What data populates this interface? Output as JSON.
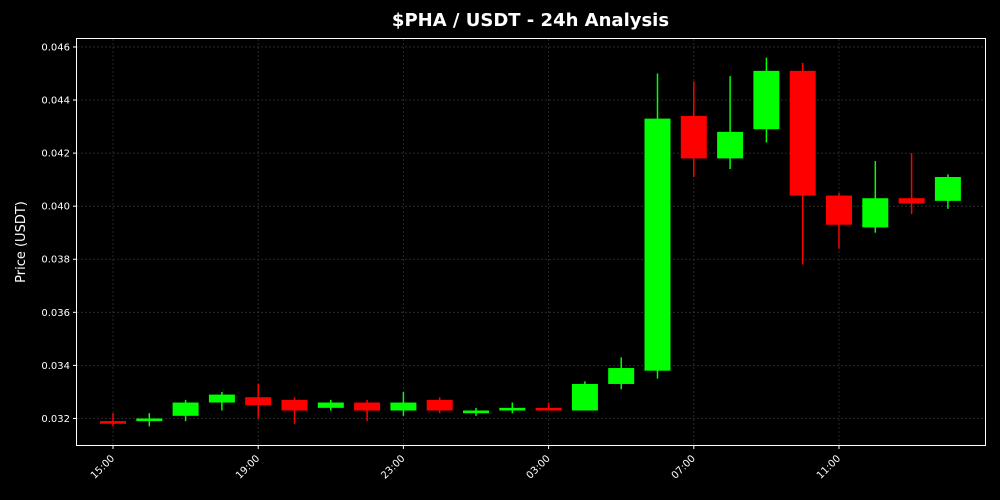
{
  "chart_data": {
    "type": "candlestick",
    "title": "$PHA / USDT - 24h Analysis",
    "xlabel": "",
    "ylabel": "Price (USDT)",
    "ylim": [
      0.031,
      0.0463
    ],
    "xlim": [
      "14:00",
      "13:00"
    ],
    "y_ticks": [
      "0.032",
      "0.034",
      "0.036",
      "0.038",
      "0.040",
      "0.042",
      "0.044",
      "0.046"
    ],
    "x_ticks": [
      "15:00",
      "19:00",
      "23:00",
      "03:00",
      "07:00",
      "11:00"
    ],
    "grid": true,
    "colors": {
      "up": "#00ff00",
      "down": "#ff0000",
      "background": "#000000",
      "text": "#ffffff",
      "grid": "#333333"
    },
    "candles": [
      {
        "time": "15:00",
        "open": 0.0319,
        "high": 0.0322,
        "low": 0.0317,
        "close": 0.0318
      },
      {
        "time": "16:00",
        "open": 0.0319,
        "high": 0.0322,
        "low": 0.0317,
        "close": 0.032
      },
      {
        "time": "17:00",
        "open": 0.0321,
        "high": 0.0327,
        "low": 0.0319,
        "close": 0.0326
      },
      {
        "time": "18:00",
        "open": 0.0326,
        "high": 0.033,
        "low": 0.0323,
        "close": 0.0329
      },
      {
        "time": "19:00",
        "open": 0.0328,
        "high": 0.0333,
        "low": 0.032,
        "close": 0.0325
      },
      {
        "time": "20:00",
        "open": 0.0327,
        "high": 0.0328,
        "low": 0.0318,
        "close": 0.0323
      },
      {
        "time": "21:00",
        "open": 0.0324,
        "high": 0.0327,
        "low": 0.0323,
        "close": 0.0326
      },
      {
        "time": "22:00",
        "open": 0.0326,
        "high": 0.0327,
        "low": 0.0319,
        "close": 0.0323
      },
      {
        "time": "23:00",
        "open": 0.0323,
        "high": 0.033,
        "low": 0.0321,
        "close": 0.0326
      },
      {
        "time": "00:00",
        "open": 0.0327,
        "high": 0.0328,
        "low": 0.0322,
        "close": 0.0323
      },
      {
        "time": "01:00",
        "open": 0.0322,
        "high": 0.0324,
        "low": 0.0321,
        "close": 0.0323
      },
      {
        "time": "02:00",
        "open": 0.0323,
        "high": 0.0326,
        "low": 0.0322,
        "close": 0.0324
      },
      {
        "time": "03:00",
        "open": 0.0324,
        "high": 0.0326,
        "low": 0.0323,
        "close": 0.0323
      },
      {
        "time": "04:00",
        "open": 0.0323,
        "high": 0.0334,
        "low": 0.0323,
        "close": 0.0333
      },
      {
        "time": "05:00",
        "open": 0.0333,
        "high": 0.0343,
        "low": 0.0331,
        "close": 0.0339
      },
      {
        "time": "06:00",
        "open": 0.0338,
        "high": 0.045,
        "low": 0.0335,
        "close": 0.0433
      },
      {
        "time": "07:00",
        "open": 0.0434,
        "high": 0.0447,
        "low": 0.0411,
        "close": 0.0418
      },
      {
        "time": "08:00",
        "open": 0.0418,
        "high": 0.0449,
        "low": 0.0414,
        "close": 0.0428
      },
      {
        "time": "09:00",
        "open": 0.0429,
        "high": 0.0456,
        "low": 0.0424,
        "close": 0.0451
      },
      {
        "time": "10:00",
        "open": 0.0451,
        "high": 0.0454,
        "low": 0.0378,
        "close": 0.0404
      },
      {
        "time": "11:00",
        "open": 0.0404,
        "high": 0.0405,
        "low": 0.0384,
        "close": 0.0393
      },
      {
        "time": "12:00",
        "open": 0.0392,
        "high": 0.0417,
        "low": 0.039,
        "close": 0.0403
      },
      {
        "time": "13:00",
        "open": 0.0403,
        "high": 0.042,
        "low": 0.0397,
        "close": 0.0401
      },
      {
        "time": "14:00",
        "open": 0.0402,
        "high": 0.0412,
        "low": 0.0399,
        "close": 0.0411
      }
    ]
  }
}
